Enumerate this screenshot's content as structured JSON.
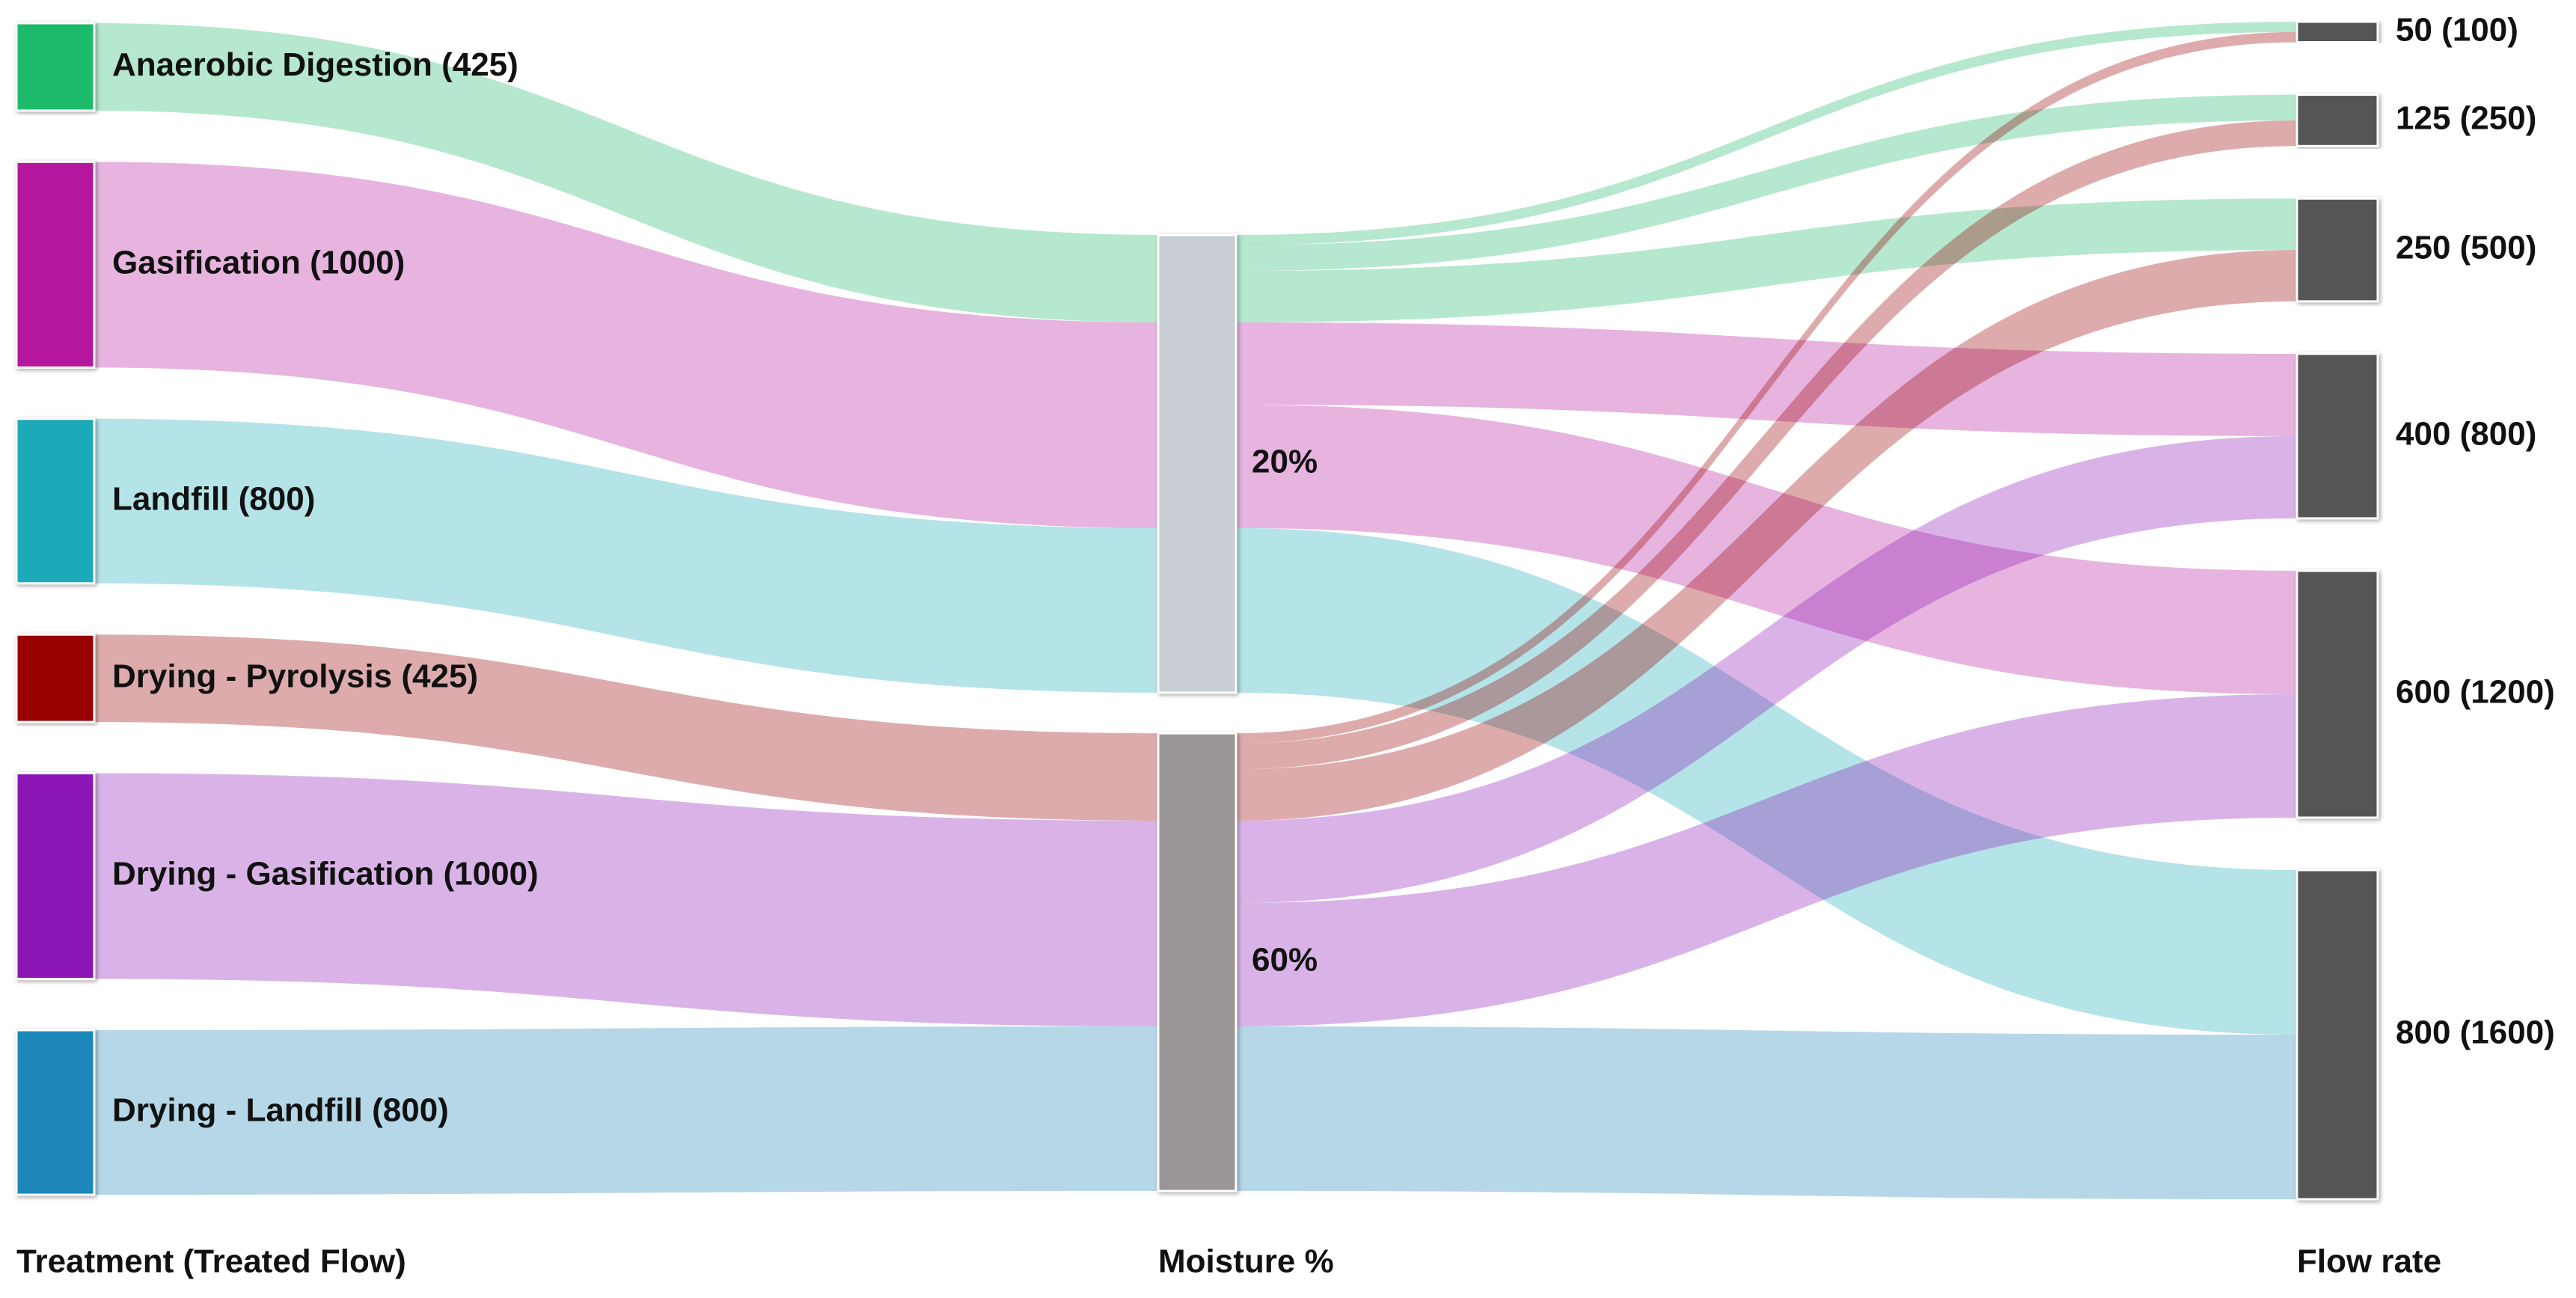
{
  "chart_data": {
    "type": "sankey",
    "column_titles": [
      "Treatment (Treated Flow)",
      "Moisture %",
      "Flow rate"
    ],
    "nodes": [
      {
        "name": "Anaerobic Digestion (425)",
        "column": 0,
        "color": "#1fba6a"
      },
      {
        "name": "Gasification (1000)",
        "column": 0,
        "color": "#b5179e"
      },
      {
        "name": "Landfill (800)",
        "column": 0,
        "color": "#1aa9b8"
      },
      {
        "name": "Drying - Pyrolysis (425)",
        "column": 0,
        "color": "#990000"
      },
      {
        "name": "Drying - Gasification (1000)",
        "column": 0,
        "color": "#8b17b5"
      },
      {
        "name": "Drying - Landfill (800)",
        "column": 0,
        "color": "#1e87b8"
      },
      {
        "name": "20%",
        "column": 1,
        "color": "#c8ccd3"
      },
      {
        "name": "60%",
        "column": 1,
        "color": "#9a9696"
      },
      {
        "name": "50 (100)",
        "column": 2,
        "color": "#555555"
      },
      {
        "name": "125 (250)",
        "column": 2,
        "color": "#555555"
      },
      {
        "name": "250 (500)",
        "column": 2,
        "color": "#555555"
      },
      {
        "name": "400 (800)",
        "column": 2,
        "color": "#555555"
      },
      {
        "name": "600 (1200)",
        "column": 2,
        "color": "#555555"
      },
      {
        "name": "800 (1600)",
        "column": 2,
        "color": "#555555"
      }
    ],
    "links": [
      {
        "source": 0,
        "target": 6,
        "value": 212.5,
        "color": "#1fba6a"
      },
      {
        "source": 1,
        "target": 6,
        "value": 500,
        "color": "#b5179e"
      },
      {
        "source": 2,
        "target": 6,
        "value": 400,
        "color": "#1aa9b8"
      },
      {
        "source": 3,
        "target": 7,
        "value": 212.5,
        "color": "#990000"
      },
      {
        "source": 4,
        "target": 7,
        "value": 500,
        "color": "#8b17b5"
      },
      {
        "source": 5,
        "target": 7,
        "value": 400,
        "color": "#1e87b8"
      },
      {
        "source": 6,
        "target": 8,
        "value": 25,
        "color": "#1fba6a"
      },
      {
        "source": 6,
        "target": 9,
        "value": 62.5,
        "color": "#1fba6a"
      },
      {
        "source": 6,
        "target": 10,
        "value": 125,
        "color": "#1fba6a"
      },
      {
        "source": 6,
        "target": 11,
        "value": 200,
        "color": "#b5179e"
      },
      {
        "source": 6,
        "target": 12,
        "value": 300,
        "color": "#b5179e"
      },
      {
        "source": 6,
        "target": 13,
        "value": 400,
        "color": "#1aa9b8"
      },
      {
        "source": 7,
        "target": 8,
        "value": 25,
        "color": "#990000"
      },
      {
        "source": 7,
        "target": 9,
        "value": 62.5,
        "color": "#990000"
      },
      {
        "source": 7,
        "target": 10,
        "value": 125,
        "color": "#990000"
      },
      {
        "source": 7,
        "target": 11,
        "value": 200,
        "color": "#8b17b5"
      },
      {
        "source": 7,
        "target": 12,
        "value": 300,
        "color": "#8b17b5"
      },
      {
        "source": 7,
        "target": 13,
        "value": 400,
        "color": "#1e87b8"
      }
    ]
  }
}
